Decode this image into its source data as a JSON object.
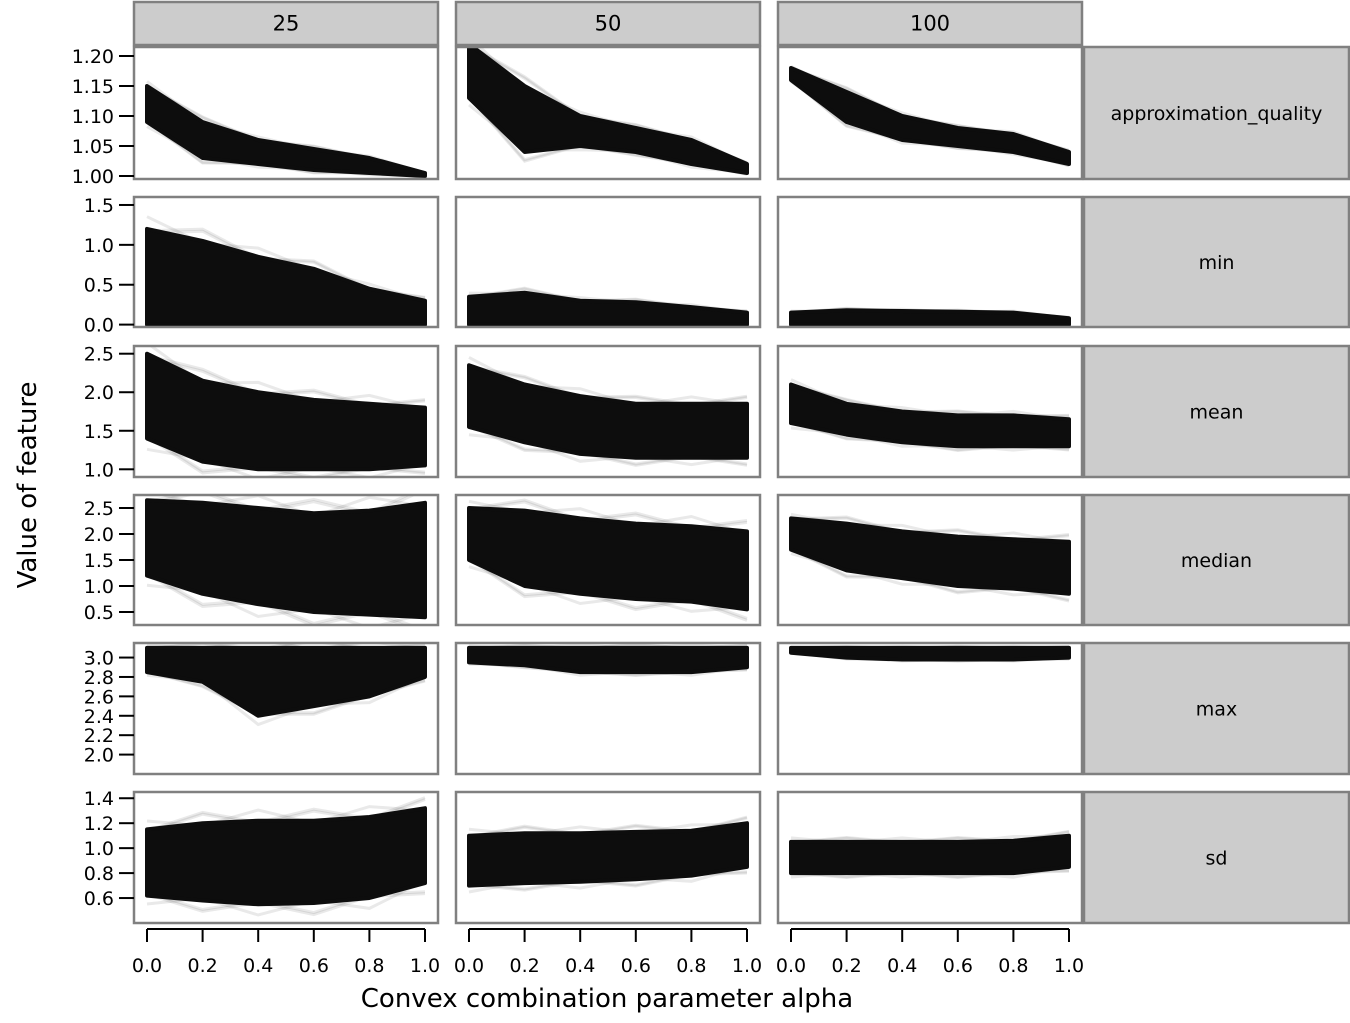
{
  "chart_data": {
    "type": "line",
    "panel_columns": [
      "25",
      "50",
      "100"
    ],
    "panel_rows": [
      "approximation_quality",
      "min",
      "mean",
      "median",
      "max",
      "sd"
    ],
    "xlabel": "Convex combination parameter alpha",
    "ylabel": "Value of feature",
    "x_values": [
      0.0,
      0.2,
      0.4,
      0.6,
      0.8,
      1.0
    ],
    "x_ticks": [
      "0.0",
      "0.2",
      "0.4",
      "0.6",
      "0.8",
      "1.0"
    ],
    "series_color": "#0d0d0d",
    "strip_color": "#cccccc",
    "rows": [
      {
        "name": "approximation_quality",
        "ylim": [
          0.995,
          1.215
        ],
        "yticks": [
          1.0,
          1.05,
          1.1,
          1.15,
          1.2
        ],
        "ytick_labels": [
          "1.00",
          "1.05",
          "1.10",
          "1.15",
          "1.20"
        ],
        "bands": [
          {
            "lower": [
              1.09,
              1.03,
              1.02,
              1.01,
              1.005,
              1.0
            ],
            "upper": [
              1.15,
              1.09,
              1.06,
              1.045,
              1.03,
              1.005
            ]
          },
          {
            "lower": [
              1.13,
              1.04,
              1.05,
              1.04,
              1.02,
              1.005
            ],
            "upper": [
              1.22,
              1.15,
              1.1,
              1.08,
              1.06,
              1.02
            ]
          },
          {
            "lower": [
              1.16,
              1.09,
              1.06,
              1.05,
              1.04,
              1.02
            ],
            "upper": [
              1.18,
              1.14,
              1.1,
              1.08,
              1.07,
              1.04
            ]
          }
        ]
      },
      {
        "name": "min",
        "ylim": [
          -0.03,
          1.6
        ],
        "yticks": [
          0.0,
          0.5,
          1.0,
          1.5
        ],
        "ytick_labels": [
          "0.0",
          "0.5",
          "1.0",
          "1.5"
        ],
        "bands": [
          {
            "lower": [
              0.0,
              0.0,
              0.0,
              0.0,
              0.0,
              0.0
            ],
            "upper": [
              1.2,
              1.05,
              0.85,
              0.7,
              0.45,
              0.3
            ]
          },
          {
            "lower": [
              0.0,
              0.0,
              0.0,
              0.0,
              0.0,
              0.0
            ],
            "upper": [
              0.35,
              0.4,
              0.3,
              0.28,
              0.22,
              0.15
            ]
          },
          {
            "lower": [
              0.0,
              0.0,
              0.0,
              0.0,
              0.0,
              0.0
            ],
            "upper": [
              0.15,
              0.18,
              0.17,
              0.16,
              0.15,
              0.08
            ]
          }
        ]
      },
      {
        "name": "mean",
        "ylim": [
          0.9,
          2.6
        ],
        "yticks": [
          1.0,
          1.5,
          2.0,
          2.5
        ],
        "ytick_labels": [
          "1.0",
          "1.5",
          "2.0",
          "2.5"
        ],
        "bands": [
          {
            "lower": [
              1.4,
              1.1,
              1.0,
              1.0,
              1.0,
              1.05
            ],
            "upper": [
              2.5,
              2.15,
              2.0,
              1.9,
              1.85,
              1.8
            ]
          },
          {
            "lower": [
              1.55,
              1.35,
              1.2,
              1.15,
              1.15,
              1.15
            ],
            "upper": [
              2.35,
              2.1,
              1.95,
              1.85,
              1.85,
              1.85
            ]
          },
          {
            "lower": [
              1.6,
              1.45,
              1.35,
              1.3,
              1.3,
              1.3
            ],
            "upper": [
              2.1,
              1.85,
              1.75,
              1.7,
              1.7,
              1.65
            ]
          }
        ]
      },
      {
        "name": "median",
        "ylim": [
          0.25,
          2.75
        ],
        "yticks": [
          0.5,
          1.0,
          1.5,
          2.0,
          2.5
        ],
        "ytick_labels": [
          "0.5",
          "1.0",
          "1.5",
          "2.0",
          "2.5"
        ],
        "bands": [
          {
            "lower": [
              1.2,
              0.85,
              0.65,
              0.5,
              0.45,
              0.4
            ],
            "upper": [
              2.65,
              2.6,
              2.5,
              2.4,
              2.45,
              2.6
            ]
          },
          {
            "lower": [
              1.5,
              1.0,
              0.85,
              0.75,
              0.7,
              0.55
            ],
            "upper": [
              2.5,
              2.45,
              2.3,
              2.2,
              2.15,
              2.05
            ]
          },
          {
            "lower": [
              1.7,
              1.3,
              1.15,
              1.0,
              0.95,
              0.85
            ],
            "upper": [
              2.3,
              2.2,
              2.05,
              1.95,
              1.9,
              1.85
            ]
          }
        ]
      },
      {
        "name": "max",
        "ylim": [
          1.8,
          3.15
        ],
        "yticks": [
          2.0,
          2.2,
          2.4,
          2.6,
          2.8,
          3.0
        ],
        "ytick_labels": [
          "2.0",
          "2.2",
          "2.4",
          "2.6",
          "2.8",
          "3.0"
        ],
        "bands": [
          {
            "lower": [
              2.85,
              2.75,
              2.4,
              2.5,
              2.6,
              2.8
            ],
            "upper": [
              3.1,
              3.1,
              3.1,
              3.1,
              3.1,
              3.1
            ]
          },
          {
            "lower": [
              2.95,
              2.92,
              2.85,
              2.85,
              2.85,
              2.9
            ],
            "upper": [
              3.1,
              3.1,
              3.1,
              3.1,
              3.1,
              3.1
            ]
          },
          {
            "lower": [
              3.05,
              3.0,
              2.98,
              2.98,
              2.98,
              3.0
            ],
            "upper": [
              3.1,
              3.1,
              3.1,
              3.1,
              3.1,
              3.1
            ]
          }
        ]
      },
      {
        "name": "sd",
        "ylim": [
          0.4,
          1.45
        ],
        "yticks": [
          0.6,
          0.8,
          1.0,
          1.2,
          1.4
        ],
        "ytick_labels": [
          "0.6",
          "0.8",
          "1.0",
          "1.2",
          "1.4"
        ],
        "bands": [
          {
            "lower": [
              0.62,
              0.58,
              0.55,
              0.56,
              0.6,
              0.72
            ],
            "upper": [
              1.15,
              1.2,
              1.22,
              1.22,
              1.25,
              1.32
            ]
          },
          {
            "lower": [
              0.7,
              0.72,
              0.73,
              0.75,
              0.78,
              0.85
            ],
            "upper": [
              1.1,
              1.12,
              1.12,
              1.13,
              1.14,
              1.2
            ]
          },
          {
            "lower": [
              0.8,
              0.8,
              0.8,
              0.8,
              0.8,
              0.85
            ],
            "upper": [
              1.05,
              1.05,
              1.05,
              1.05,
              1.06,
              1.1
            ]
          }
        ]
      }
    ]
  }
}
